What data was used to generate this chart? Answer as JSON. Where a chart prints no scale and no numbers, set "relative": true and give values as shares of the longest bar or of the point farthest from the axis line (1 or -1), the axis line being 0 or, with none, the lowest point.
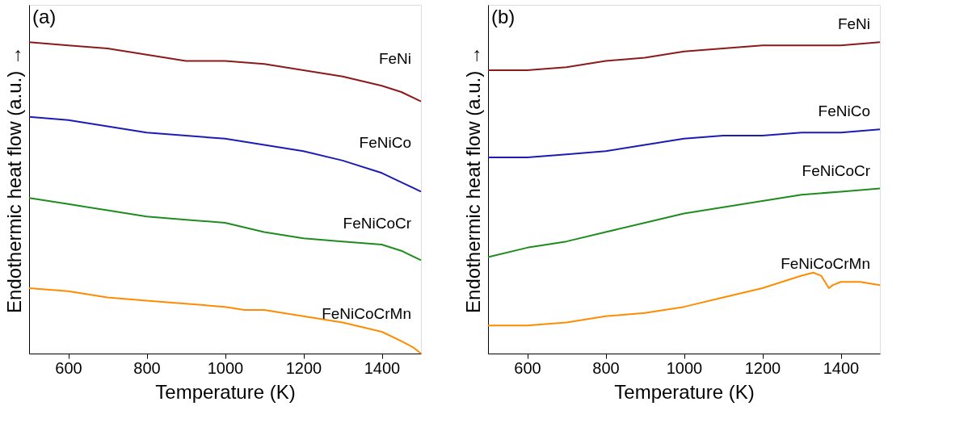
{
  "chart_data": [
    {
      "type": "line",
      "relative": true,
      "annotations": [
        "(a)"
      ],
      "xlabel": "Temperature (K)",
      "ylabel": "Endothermic heat flow (a.u.) →",
      "xlim": [
        500,
        1500
      ],
      "xticks": [
        600,
        800,
        1000,
        1200,
        1400
      ],
      "tick_labels": "x",
      "grid": false,
      "x": [
        500,
        600,
        700,
        800,
        900,
        1000,
        1100,
        1200,
        1300,
        1400,
        1450,
        1500
      ],
      "series": [
        {
          "name": "FeNi",
          "color": "#8b1a1a",
          "values": [
            1.0,
            0.99,
            0.98,
            0.96,
            0.94,
            0.94,
            0.93,
            0.91,
            0.89,
            0.86,
            0.84,
            0.81
          ]
        },
        {
          "name": "FeNiCo",
          "color": "#1c1cb4",
          "values": [
            0.76,
            0.75,
            0.73,
            0.71,
            0.7,
            0.69,
            0.67,
            0.65,
            0.62,
            0.58,
            0.55,
            0.52
          ]
        },
        {
          "name": "FeNiCoCr",
          "color": "#1e8c1e",
          "values": [
            0.5,
            0.48,
            0.46,
            0.44,
            0.43,
            0.42,
            0.39,
            0.37,
            0.36,
            0.35,
            0.33,
            0.3
          ]
        },
        {
          "name": "FeNiCoCrMn",
          "color": "#ff8c00",
          "x": [
            500,
            600,
            700,
            800,
            900,
            1000,
            1050,
            1100,
            1200,
            1300,
            1400,
            1450,
            1480,
            1500
          ],
          "values": [
            0.21,
            0.2,
            0.18,
            0.17,
            0.16,
            0.15,
            0.14,
            0.14,
            0.12,
            0.1,
            0.07,
            0.04,
            0.02,
            0
          ]
        }
      ]
    },
    {
      "type": "line",
      "relative": true,
      "annotations": [
        "(b)"
      ],
      "xlabel": "Temperature (K)",
      "ylabel": "Endothermic heat flow (a.u.) →",
      "xlim": [
        500,
        1500
      ],
      "xticks": [
        600,
        800,
        1000,
        1200,
        1400
      ],
      "tick_labels": "x",
      "grid": false,
      "x": [
        500,
        600,
        700,
        800,
        900,
        1000,
        1100,
        1200,
        1300,
        1400,
        1500
      ],
      "series": [
        {
          "name": "FeNi",
          "color": "#8b1a1a",
          "values": [
            0.91,
            0.91,
            0.92,
            0.94,
            0.95,
            0.97,
            0.98,
            0.99,
            0.99,
            0.99,
            1.0
          ]
        },
        {
          "name": "FeNiCo",
          "color": "#1c1cb4",
          "values": [
            0.63,
            0.63,
            0.64,
            0.65,
            0.67,
            0.69,
            0.7,
            0.7,
            0.71,
            0.71,
            0.72
          ]
        },
        {
          "name": "FeNiCoCr",
          "color": "#1e8c1e",
          "values": [
            0.31,
            0.34,
            0.36,
            0.39,
            0.42,
            0.45,
            0.47,
            0.49,
            0.51,
            0.52,
            0.53
          ]
        },
        {
          "name": "FeNiCoCrMn",
          "color": "#ff8c00",
          "x": [
            500,
            600,
            700,
            800,
            900,
            1000,
            1100,
            1200,
            1300,
            1330,
            1350,
            1370,
            1380,
            1400,
            1450,
            1500
          ],
          "values": [
            0.09,
            0.09,
            0.1,
            0.12,
            0.13,
            0.15,
            0.18,
            0.21,
            0.25,
            0.26,
            0.25,
            0.21,
            0.22,
            0.23,
            0.23,
            0.22
          ]
        }
      ]
    }
  ]
}
